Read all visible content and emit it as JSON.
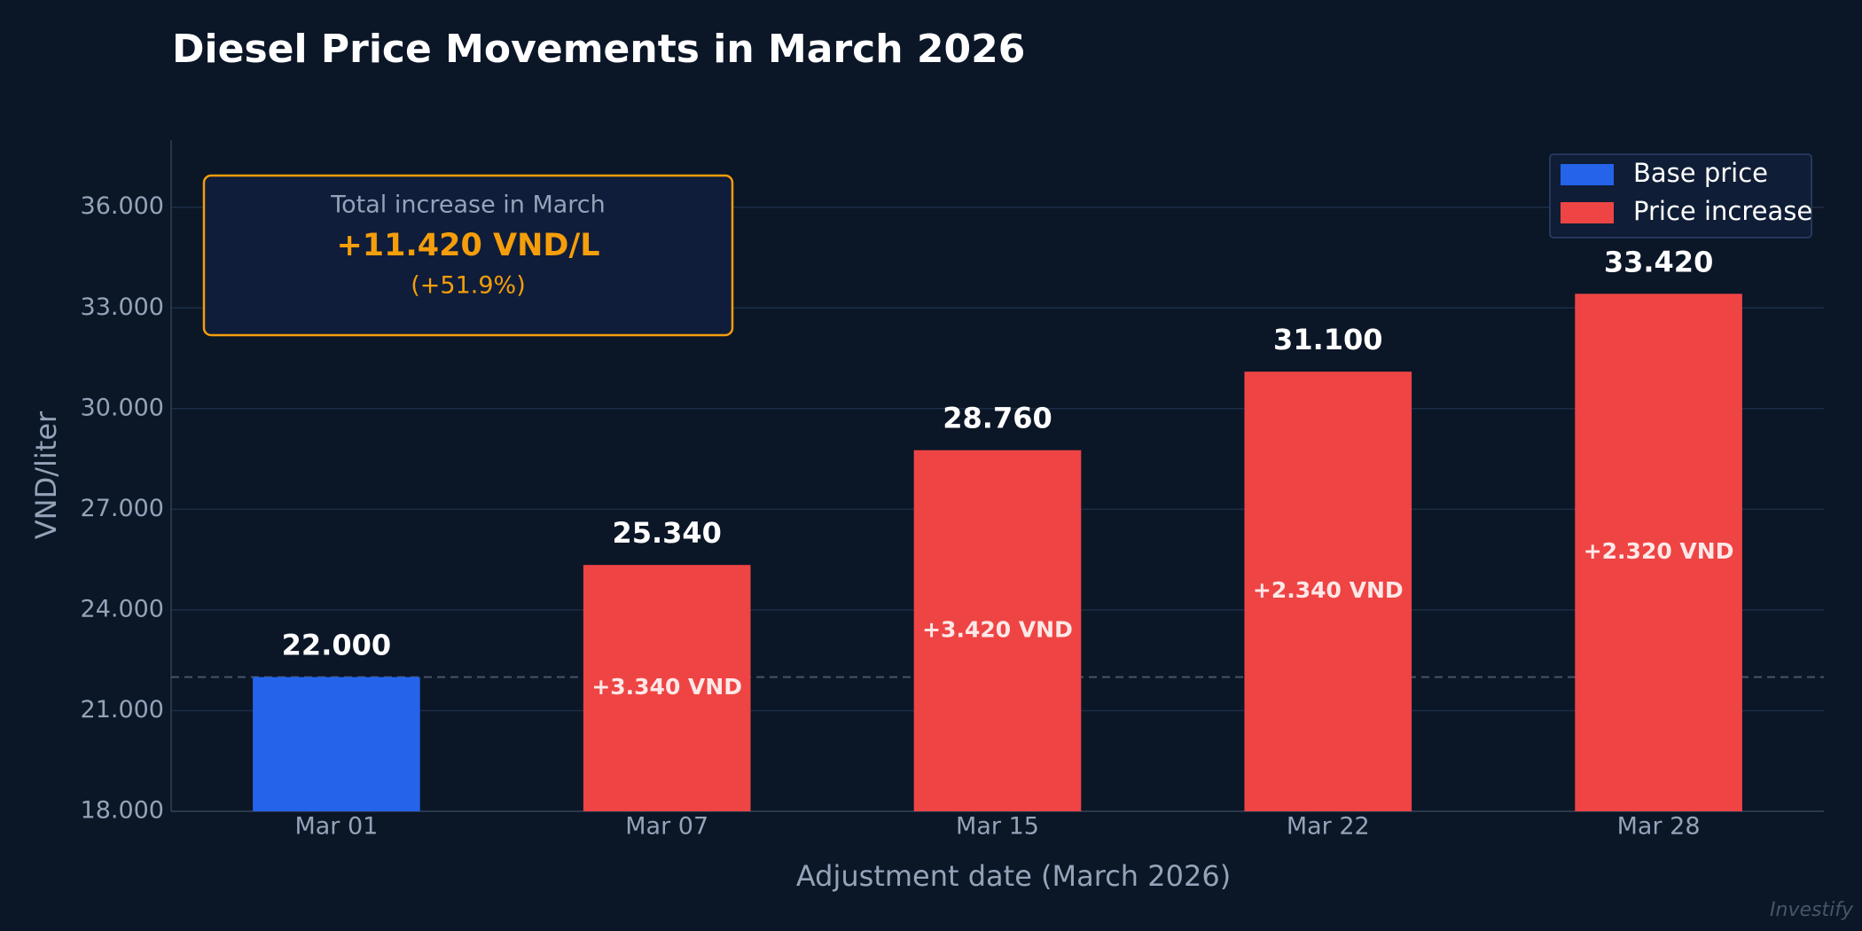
{
  "chart_data": {
    "type": "bar",
    "title": "Diesel Price Movements in March 2026",
    "x_label": "Adjustment date (March 2026)",
    "y_label": "VND/liter",
    "categories": [
      "Mar 01",
      "Mar 07",
      "Mar 15",
      "Mar 22",
      "Mar 28"
    ],
    "series": [
      {
        "name": "Base price",
        "color": "#2563eb",
        "values": [
          22000,
          null,
          null,
          null,
          null
        ],
        "value_labels": [
          "22.000",
          null,
          null,
          null,
          null
        ]
      },
      {
        "name": "Price increase",
        "color": "#ef4444",
        "values": [
          null,
          25340,
          28760,
          31100,
          33420
        ],
        "value_labels": [
          null,
          "25.340",
          "28.760",
          "31.100",
          "33.420"
        ],
        "changes": [
          null,
          3340,
          3420,
          2340,
          2320
        ],
        "change_labels": [
          null,
          "+3.340 VND",
          "+3.420 VND",
          "+2.340 VND",
          "+2.320 VND"
        ]
      }
    ],
    "reference_line": 22000,
    "ylim": [
      18000,
      38000
    ],
    "yticks": [
      {
        "value": 18000,
        "label": "18.000"
      },
      {
        "value": 21000,
        "label": "21.000"
      },
      {
        "value": 24000,
        "label": "24.000"
      },
      {
        "value": 27000,
        "label": "27.000"
      },
      {
        "value": 30000,
        "label": "30.000"
      },
      {
        "value": 33000,
        "label": "33.000"
      },
      {
        "value": 36000,
        "label": "36.000"
      }
    ],
    "grid": true,
    "legend": "top-right",
    "annotation": {
      "title": "Total increase in March",
      "headline": "+11.420 VND/L",
      "detail": "(+51.9%)"
    },
    "watermark": "Investify"
  }
}
